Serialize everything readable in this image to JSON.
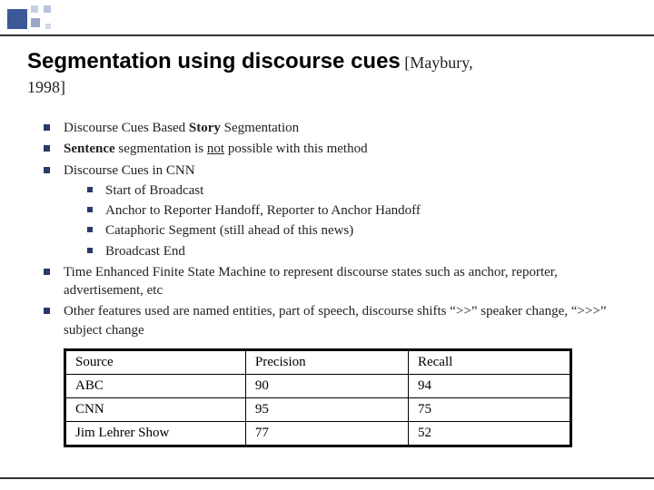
{
  "title": {
    "main": "Segmentation using discourse cues",
    "cite": " [Maybury,",
    "year": "1998]"
  },
  "bullets": {
    "b1_pre": "Discourse Cues Based ",
    "b1_bold": "Story",
    "b1_post": " Segmentation",
    "b2_bold": "Sentence",
    "b2_mid": " segmentation is ",
    "b2_not": "not",
    "b2_post": " possible with this method",
    "b3": "Discourse Cues in CNN",
    "b3_sub": {
      "s1": "Start of Broadcast",
      "s2": "Anchor to Reporter Handoff, Reporter to Anchor Handoff",
      "s3": "Cataphoric Segment (still ahead of this news)",
      "s4": "Broadcast End"
    },
    "b4": "Time Enhanced Finite State Machine to represent discourse states such as anchor, reporter, advertisement, etc",
    "b5": "Other features used are named entities, part of speech, discourse shifts “>>” speaker change, “>>>” subject change"
  },
  "table": {
    "headers": {
      "c1": "Source",
      "c2": "Precision",
      "c3": "Recall"
    },
    "rows": [
      {
        "c1": "ABC",
        "c2": "90",
        "c3": "94"
      },
      {
        "c1": "CNN",
        "c2": "95",
        "c3": "75"
      },
      {
        "c1": "Jim Lehrer Show",
        "c2": "77",
        "c3": "52"
      }
    ],
    "col_widths": {
      "c1": "200px",
      "c2": "180px",
      "c3": "180px"
    }
  },
  "colors": {
    "bullet": "#2a3a6a",
    "rule": "#333333",
    "text": "#222222"
  }
}
